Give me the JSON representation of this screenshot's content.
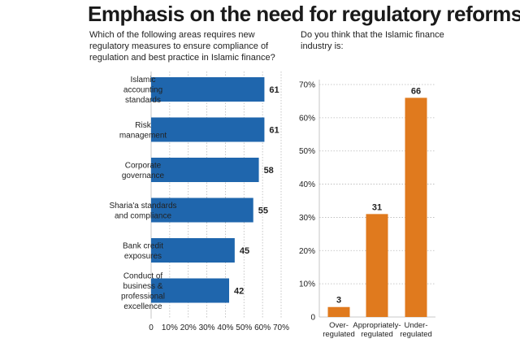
{
  "title": "Emphasis on the need for regulatory reforms",
  "colors": {
    "left_bar": "#1f66ad",
    "right_bar": "#e07a1e",
    "grid": "#b8b8b8",
    "text": "#222222"
  },
  "chart_data": [
    {
      "type": "bar",
      "orientation": "horizontal",
      "question": "Which of the following areas requires new regulatory measures to ensure compliance of regulation and best practice in Islamic finance?",
      "categories": [
        [
          "Islamic",
          "accounting",
          "standards"
        ],
        [
          "Risk",
          "management"
        ],
        [
          "Corporate",
          "governance"
        ],
        [
          "Sharia'a standards",
          "and compliance"
        ],
        [
          "Bank credit",
          "exposures"
        ],
        [
          "Conduct of",
          "business &",
          "professional",
          "excellence"
        ]
      ],
      "values": [
        61,
        61,
        58,
        55,
        45,
        42
      ],
      "xlim": [
        0,
        70
      ],
      "xticks": [
        0,
        10,
        20,
        30,
        40,
        50,
        60,
        70
      ],
      "xtick_labels": [
        "0",
        "10%",
        "20%",
        "30%",
        "40%",
        "50%",
        "60%",
        "70%"
      ],
      "grid": true
    },
    {
      "type": "bar",
      "orientation": "vertical",
      "question": "Do you think that the Islamic finance industry is:",
      "categories": [
        [
          "Over-",
          "regulated"
        ],
        [
          "Appropriately-",
          "regulated"
        ],
        [
          "Under-",
          "regulated"
        ]
      ],
      "values": [
        3,
        31,
        66
      ],
      "ylim": [
        0,
        70
      ],
      "yticks": [
        0,
        10,
        20,
        30,
        40,
        50,
        60,
        70
      ],
      "ytick_labels": [
        "0",
        "10%",
        "20%",
        "30%",
        "40%",
        "50%",
        "60%",
        "70%"
      ],
      "grid": true
    }
  ]
}
